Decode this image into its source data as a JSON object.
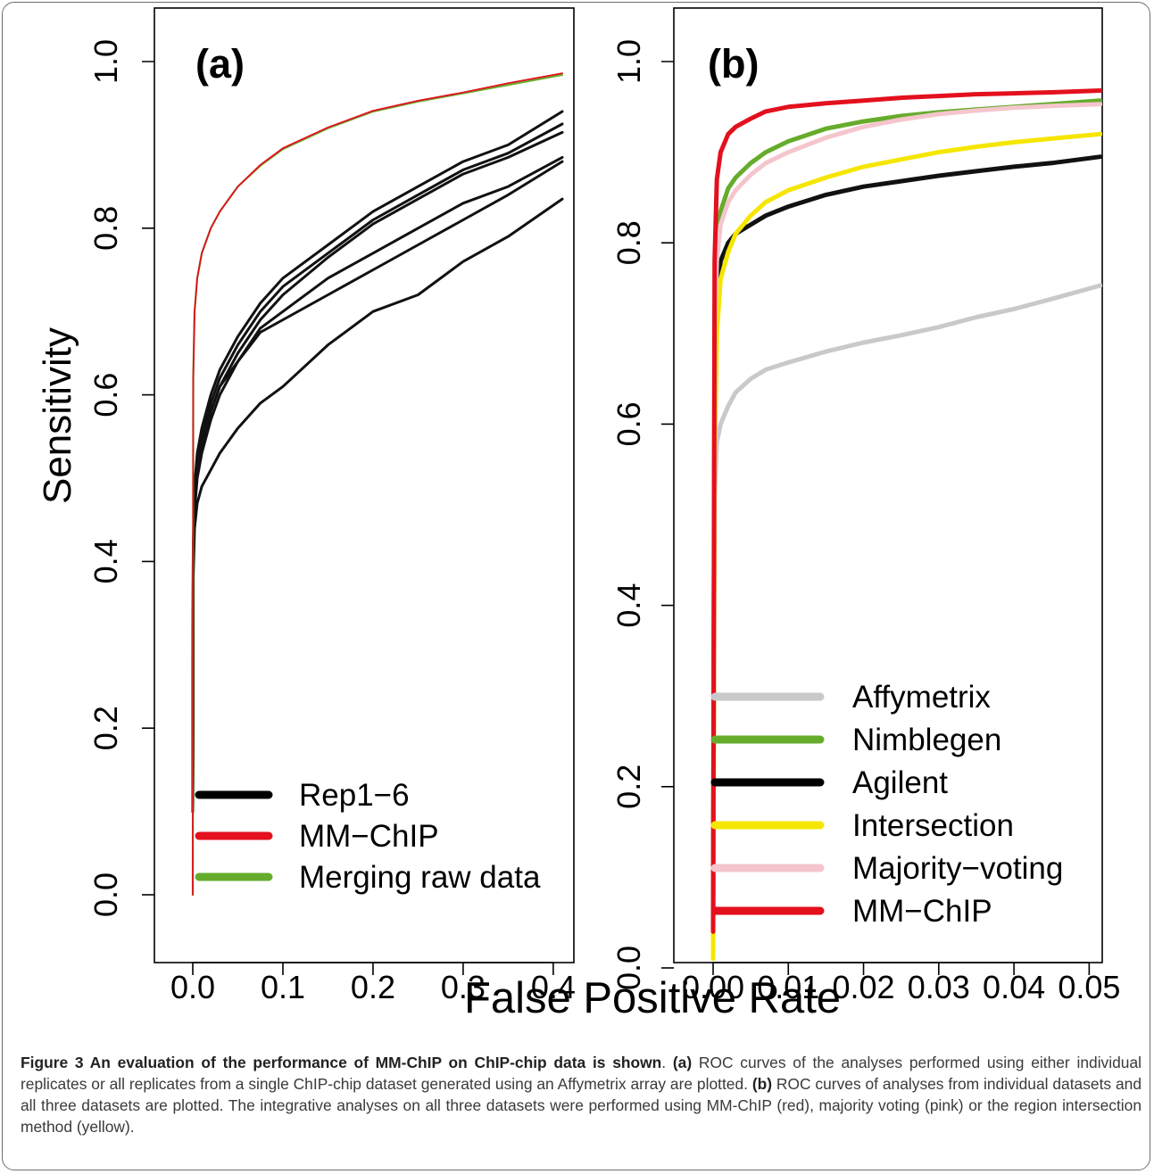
{
  "figure": {
    "xlabel": "False Positive Rate",
    "ylabel": "Sensitivity"
  },
  "caption": {
    "lead": "Figure 3 An evaluation of the performance of MM-ChIP on ChIP-chip data is shown",
    "lead_end": ". ",
    "a_label": "(a)",
    "a_text": " ROC curves of the analyses performed using either individual replicates or all replicates from a single ChIP-chip dataset generated using an Affymetrix array are plotted. ",
    "b_label": "(b)",
    "b_text": " ROC curves of analyses from individual datasets and all three datasets are plotted. The integrative analyses on all three datasets were performed using MM-ChIP (red), majority voting (pink) or the region intersection method (yellow)."
  },
  "chart_data": [
    {
      "type": "line",
      "panel_label": "(a)",
      "xlim": [
        0,
        0.41
      ],
      "ylim": [
        0,
        1
      ],
      "x_ticks": [
        "0.0",
        "0.1",
        "0.2",
        "0.3",
        "0.4"
      ],
      "y_ticks": [
        "0.0",
        "0.2",
        "0.4",
        "0.6",
        "0.8",
        "1.0"
      ],
      "legend_position": "bottom-right",
      "legend": [
        {
          "label": "Rep1−6",
          "color": "#000000"
        },
        {
          "label": "MM−ChIP",
          "color": "#e3101e"
        },
        {
          "label": "Merging raw data",
          "color": "#66ac2c"
        }
      ],
      "series": [
        {
          "legend_index": 0,
          "color": "#111111",
          "width": 3,
          "x": [
            0,
            0.0005,
            0.002,
            0.005,
            0.01,
            0.02,
            0.03,
            0.05,
            0.075,
            0.1,
            0.15,
            0.2,
            0.25,
            0.3,
            0.35,
            0.41
          ],
          "y": [
            0.1,
            0.42,
            0.49,
            0.53,
            0.56,
            0.6,
            0.63,
            0.67,
            0.71,
            0.74,
            0.78,
            0.82,
            0.85,
            0.88,
            0.9,
            0.94
          ]
        },
        {
          "legend_index": 0,
          "color": "#111111",
          "width": 3,
          "x": [
            0,
            0.0005,
            0.002,
            0.005,
            0.01,
            0.02,
            0.03,
            0.05,
            0.075,
            0.1,
            0.15,
            0.2,
            0.25,
            0.3,
            0.35,
            0.41
          ],
          "y": [
            0.1,
            0.41,
            0.48,
            0.52,
            0.55,
            0.59,
            0.62,
            0.66,
            0.7,
            0.73,
            0.77,
            0.81,
            0.84,
            0.87,
            0.89,
            0.925
          ]
        },
        {
          "legend_index": 0,
          "color": "#111111",
          "width": 3,
          "x": [
            0,
            0.0005,
            0.002,
            0.005,
            0.01,
            0.02,
            0.03,
            0.05,
            0.075,
            0.1,
            0.15,
            0.2,
            0.25,
            0.3,
            0.35,
            0.41
          ],
          "y": [
            0.1,
            0.41,
            0.47,
            0.51,
            0.54,
            0.58,
            0.61,
            0.65,
            0.69,
            0.72,
            0.765,
            0.805,
            0.835,
            0.865,
            0.885,
            0.915
          ]
        },
        {
          "legend_index": 0,
          "color": "#111111",
          "width": 3,
          "x": [
            0,
            0.0005,
            0.002,
            0.005,
            0.01,
            0.02,
            0.03,
            0.05,
            0.075,
            0.1,
            0.15,
            0.2,
            0.25,
            0.3,
            0.35,
            0.41
          ],
          "y": [
            0.1,
            0.4,
            0.47,
            0.51,
            0.54,
            0.58,
            0.61,
            0.64,
            0.68,
            0.7,
            0.74,
            0.77,
            0.8,
            0.83,
            0.85,
            0.885
          ]
        },
        {
          "legend_index": 0,
          "color": "#111111",
          "width": 3,
          "x": [
            0,
            0.0005,
            0.002,
            0.005,
            0.01,
            0.02,
            0.03,
            0.05,
            0.075,
            0.1,
            0.15,
            0.2,
            0.25,
            0.3,
            0.35,
            0.41
          ],
          "y": [
            0.1,
            0.4,
            0.46,
            0.5,
            0.53,
            0.57,
            0.6,
            0.64,
            0.675,
            0.69,
            0.72,
            0.75,
            0.78,
            0.81,
            0.84,
            0.88
          ]
        },
        {
          "legend_index": 0,
          "color": "#111111",
          "width": 3,
          "x": [
            0,
            0.0005,
            0.002,
            0.005,
            0.01,
            0.02,
            0.03,
            0.05,
            0.075,
            0.1,
            0.15,
            0.2,
            0.25,
            0.3,
            0.35,
            0.41
          ],
          "y": [
            0.1,
            0.38,
            0.44,
            0.47,
            0.49,
            0.51,
            0.53,
            0.56,
            0.59,
            0.61,
            0.66,
            0.7,
            0.72,
            0.76,
            0.79,
            0.835
          ]
        },
        {
          "legend_index": 2,
          "color": "#66ac2c",
          "width": 2.2,
          "x": [
            0,
            0.0005,
            0.002,
            0.005,
            0.01,
            0.02,
            0.03,
            0.05,
            0.075,
            0.1,
            0.15,
            0.2,
            0.25,
            0.3,
            0.35,
            0.41
          ],
          "y": [
            0,
            0.62,
            0.7,
            0.74,
            0.77,
            0.8,
            0.82,
            0.85,
            0.875,
            0.895,
            0.92,
            0.94,
            0.952,
            0.962,
            0.972,
            0.984
          ]
        },
        {
          "legend_index": 1,
          "color": "#e3101e",
          "width": 1.8,
          "x": [
            0,
            0.0005,
            0.002,
            0.005,
            0.01,
            0.02,
            0.03,
            0.05,
            0.075,
            0.1,
            0.15,
            0.2,
            0.25,
            0.3,
            0.35,
            0.41
          ],
          "y": [
            0,
            0.62,
            0.7,
            0.74,
            0.77,
            0.8,
            0.82,
            0.85,
            0.876,
            0.896,
            0.921,
            0.941,
            0.953,
            0.963,
            0.974,
            0.986
          ]
        }
      ]
    },
    {
      "type": "line",
      "panel_label": "(b)",
      "xlim": [
        0,
        0.0515
      ],
      "ylim": [
        0,
        1
      ],
      "x_ticks": [
        "0.00",
        "0.01",
        "0.02",
        "0.03",
        "0.04",
        "0.05"
      ],
      "y_ticks": [
        "0.0",
        "0.2",
        "0.4",
        "0.6",
        "0.8",
        "1.0"
      ],
      "legend_position": "bottom-right",
      "legend": [
        {
          "label": "Affymetrix",
          "color": "#c9c9c9"
        },
        {
          "label": "Nimblegen",
          "color": "#66ac2c"
        },
        {
          "label": "Agilent",
          "color": "#000000"
        },
        {
          "label": "Intersection",
          "color": "#f5e600"
        },
        {
          "label": "Majority−voting",
          "color": "#f5c5cd"
        },
        {
          "label": "MM−ChIP",
          "color": "#e3101e"
        }
      ],
      "series": [
        {
          "legend_index": 0,
          "color": "#c9c9c9",
          "width": 5,
          "x": [
            0,
            0.0002,
            0.0005,
            0.001,
            0.002,
            0.003,
            0.005,
            0.007,
            0.01,
            0.015,
            0.02,
            0.025,
            0.03,
            0.035,
            0.04,
            0.045,
            0.0515
          ],
          "y": [
            0.05,
            0.52,
            0.58,
            0.6,
            0.62,
            0.635,
            0.65,
            0.66,
            0.668,
            0.68,
            0.69,
            0.698,
            0.707,
            0.718,
            0.727,
            0.738,
            0.753
          ]
        },
        {
          "legend_index": 2,
          "color": "#111111",
          "width": 5,
          "x": [
            0,
            0.0002,
            0.0005,
            0.001,
            0.002,
            0.003,
            0.005,
            0.007,
            0.01,
            0.015,
            0.02,
            0.025,
            0.03,
            0.035,
            0.04,
            0.045,
            0.0515
          ],
          "y": [
            0.05,
            0.66,
            0.74,
            0.78,
            0.8,
            0.81,
            0.82,
            0.83,
            0.84,
            0.853,
            0.862,
            0.868,
            0.874,
            0.879,
            0.884,
            0.888,
            0.895
          ]
        },
        {
          "legend_index": 3,
          "color": "#f5e600",
          "width": 5,
          "x": [
            0,
            0.0002,
            0.0005,
            0.001,
            0.002,
            0.003,
            0.005,
            0.007,
            0.01,
            0.015,
            0.02,
            0.025,
            0.03,
            0.035,
            0.04,
            0.045,
            0.0515
          ],
          "y": [
            0.01,
            0.55,
            0.7,
            0.76,
            0.79,
            0.81,
            0.83,
            0.845,
            0.858,
            0.872,
            0.884,
            0.892,
            0.9,
            0.906,
            0.911,
            0.915,
            0.92
          ]
        },
        {
          "legend_index": 1,
          "color": "#66ac2c",
          "width": 5,
          "x": [
            0,
            0.0002,
            0.0005,
            0.001,
            0.002,
            0.003,
            0.005,
            0.007,
            0.01,
            0.015,
            0.02,
            0.025,
            0.03,
            0.035,
            0.04,
            0.045,
            0.0515
          ],
          "y": [
            0.05,
            0.72,
            0.8,
            0.835,
            0.86,
            0.872,
            0.888,
            0.9,
            0.912,
            0.926,
            0.934,
            0.94,
            0.944,
            0.947,
            0.95,
            0.953,
            0.957
          ]
        },
        {
          "legend_index": 4,
          "color": "#f5c5cd",
          "width": 5,
          "x": [
            0,
            0.0002,
            0.0005,
            0.001,
            0.002,
            0.003,
            0.005,
            0.007,
            0.01,
            0.015,
            0.02,
            0.025,
            0.03,
            0.035,
            0.04,
            0.045,
            0.0515
          ],
          "y": [
            0.05,
            0.7,
            0.78,
            0.82,
            0.845,
            0.858,
            0.875,
            0.888,
            0.9,
            0.916,
            0.928,
            0.936,
            0.942,
            0.946,
            0.949,
            0.951,
            0.953
          ]
        },
        {
          "legend_index": 5,
          "color": "#e3101e",
          "width": 5,
          "x": [
            0,
            0.0002,
            0.0005,
            0.001,
            0.002,
            0.003,
            0.005,
            0.007,
            0.01,
            0.015,
            0.02,
            0.025,
            0.03,
            0.035,
            0.04,
            0.045,
            0.0515
          ],
          "y": [
            0.04,
            0.78,
            0.87,
            0.9,
            0.92,
            0.928,
            0.937,
            0.945,
            0.95,
            0.954,
            0.957,
            0.96,
            0.962,
            0.964,
            0.965,
            0.966,
            0.968
          ]
        }
      ]
    }
  ]
}
